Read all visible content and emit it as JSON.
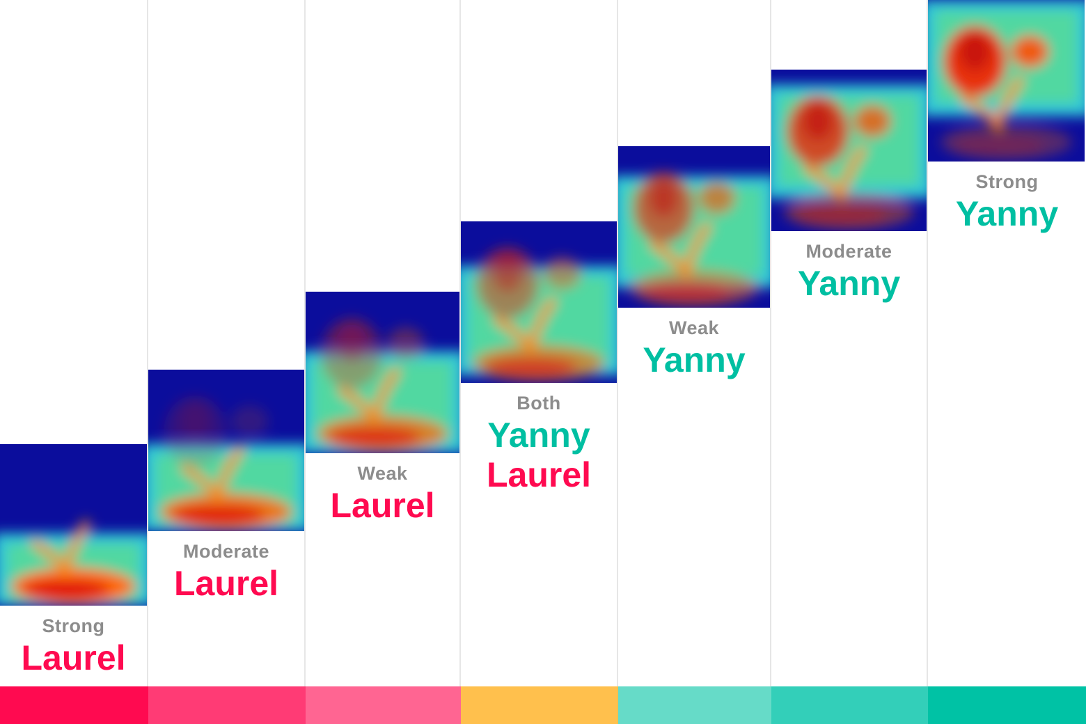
{
  "columns": [
    {
      "strength": "Strong",
      "words": [
        "Laurel"
      ]
    },
    {
      "strength": "Moderate",
      "words": [
        "Laurel"
      ]
    },
    {
      "strength": "Weak",
      "words": [
        "Laurel"
      ]
    },
    {
      "strength": "Both",
      "words": [
        "Yanny",
        "Laurel"
      ]
    },
    {
      "strength": "Weak",
      "words": [
        "Yanny"
      ]
    },
    {
      "strength": "Moderate",
      "words": [
        "Yanny"
      ]
    },
    {
      "strength": "Strong",
      "words": [
        "Yanny"
      ]
    }
  ]
}
